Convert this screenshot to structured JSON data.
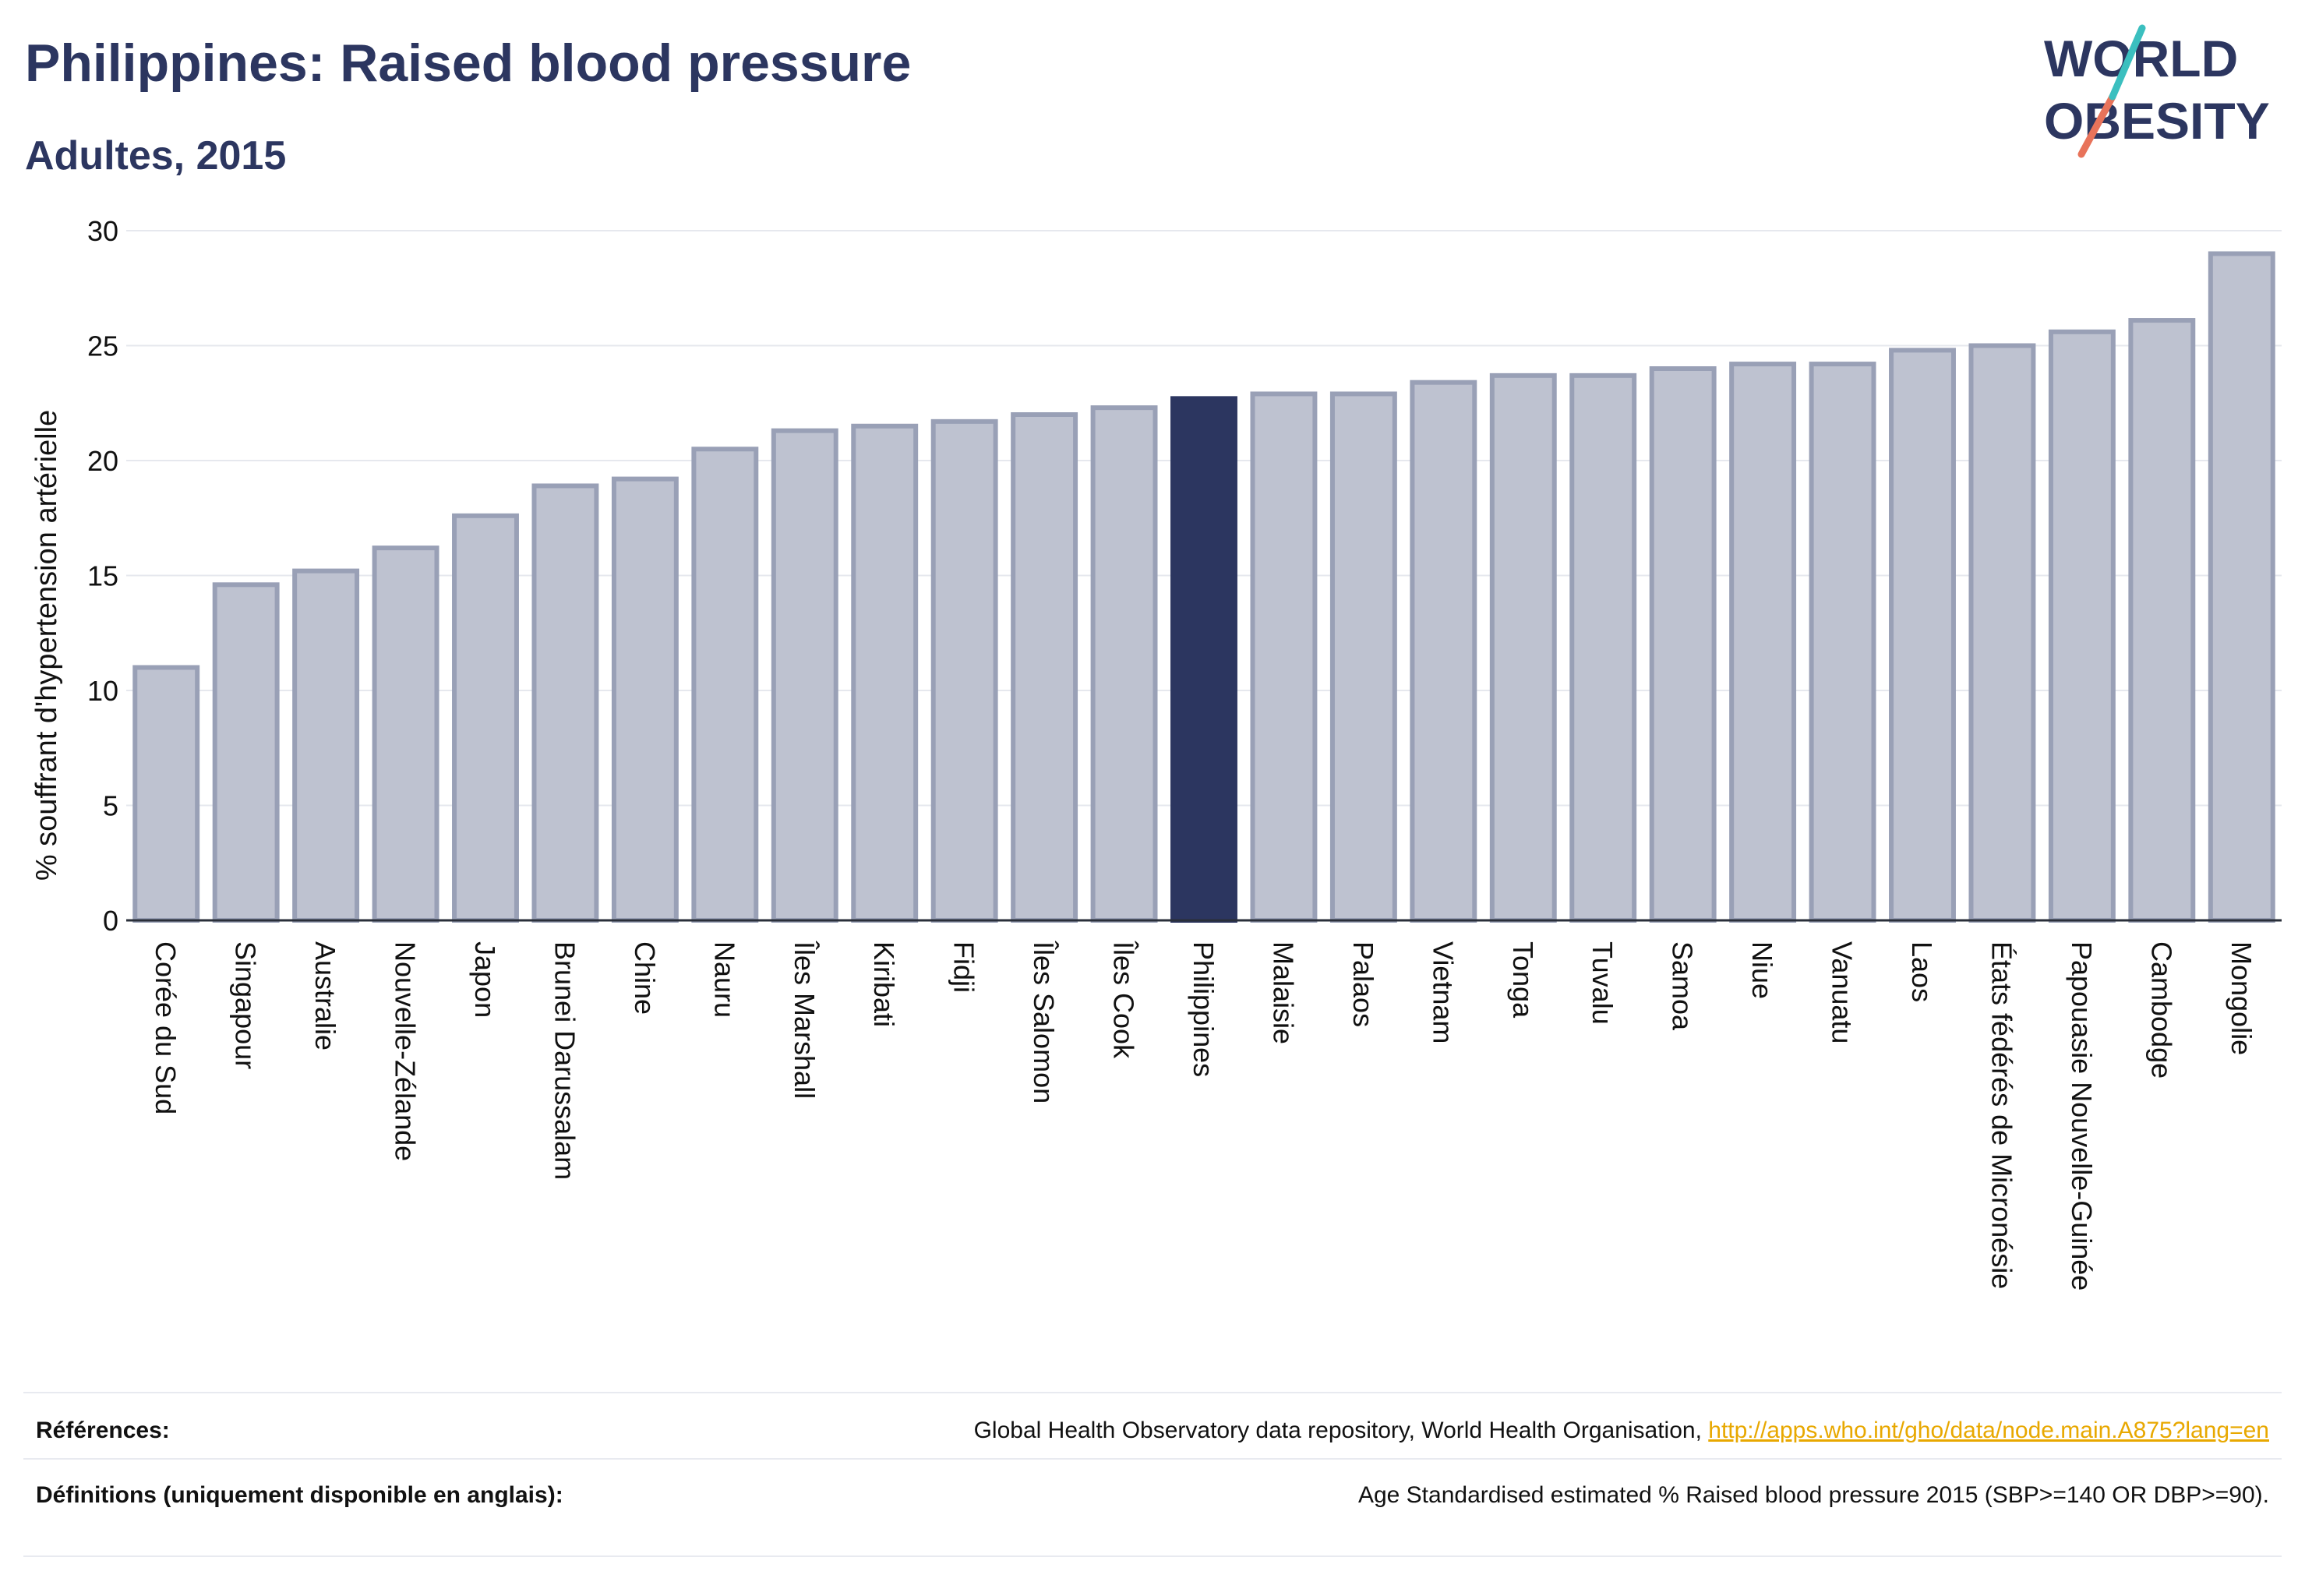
{
  "header": {
    "title": "Philippines: Raised blood pressure",
    "subtitle": "Adultes, 2015"
  },
  "logo": {
    "line1": "WORLD",
    "line2": "OBESITY"
  },
  "colors": {
    "highlight": "#2c3660",
    "bar_fill": "#bec2d0",
    "bar_stroke": "#99a0b6",
    "text_dark": "#2c3660",
    "link": "#e8a800",
    "logo_teal": "#3bbfbf",
    "logo_coral": "#e8735a"
  },
  "chart_data": {
    "type": "bar",
    "title": "Philippines: Raised blood pressure",
    "subtitle": "Adultes, 2015",
    "ylabel": "% souffrant d'hypertension artérielle",
    "xlabel": "",
    "ylim": [
      0,
      30
    ],
    "yticks": [
      0,
      5,
      10,
      15,
      20,
      25,
      30
    ],
    "grid": true,
    "highlight": "Philippines",
    "categories": [
      "Corée du Sud",
      "Singapour",
      "Australie",
      "Nouvelle-Zélande",
      "Japon",
      "Brunei Darussalam",
      "Chine",
      "Nauru",
      "Îles Marshall",
      "Kiribati",
      "Fidji",
      "Îles Salomon",
      "Îles Cook",
      "Philippines",
      "Malaisie",
      "Palaos",
      "Vietnam",
      "Tonga",
      "Tuvalu",
      "Samoa",
      "Niue",
      "Vanuatu",
      "Laos",
      "États fédérés de Micronésie",
      "Papouasie Nouvelle-Guinée",
      "Cambodge",
      "Mongolie"
    ],
    "values": [
      11.0,
      14.6,
      15.2,
      16.2,
      17.6,
      18.9,
      19.2,
      20.5,
      21.3,
      21.5,
      21.7,
      22.0,
      22.3,
      22.7,
      22.9,
      22.9,
      23.4,
      23.7,
      23.7,
      24.0,
      24.2,
      24.2,
      24.8,
      25.0,
      25.6,
      26.1,
      29.0
    ]
  },
  "footer": {
    "references_label": "Références:",
    "references_text": "Global Health Observatory data repository, World Health Organisation, ",
    "references_link": "http://apps.who.int/gho/data/node.main.A875?lang=en",
    "definitions_label": "Définitions (uniquement disponible en anglais):",
    "definitions_text": "Age Standardised estimated % Raised blood pressure 2015 (SBP>=140 OR DBP>=90)."
  }
}
